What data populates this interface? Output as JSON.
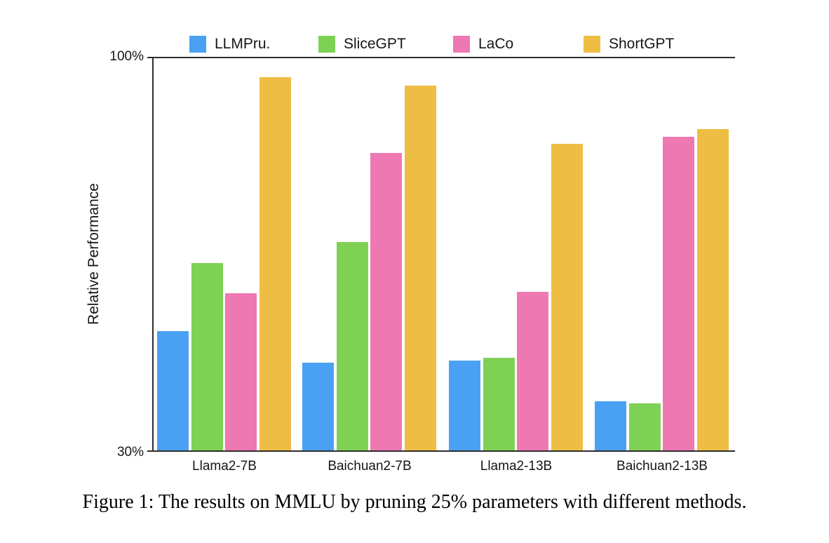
{
  "figure": {
    "caption": "Figure 1: The results on MMLU by pruning 25% parameters with different methods."
  },
  "chart_data": {
    "type": "bar",
    "title": "",
    "xlabel": "",
    "ylabel": "Relative Performance",
    "ylim": [
      30,
      100
    ],
    "yticks": [
      "100%",
      "30%"
    ],
    "grid": false,
    "legend_position": "top",
    "axis_color": "#2e2e2e",
    "categories": [
      "Llama2-7B",
      "Baichuan2-7B",
      "Llama2-13B",
      "Baichuan2-13B"
    ],
    "series": [
      {
        "name": "LLMPru.",
        "color": "#4aa1f3",
        "values": [
          51.3,
          45.6,
          46.0,
          38.8
        ]
      },
      {
        "name": "SliceGPT",
        "color": "#7ed155",
        "values": [
          63.4,
          67.2,
          46.5,
          38.4
        ]
      },
      {
        "name": "LaCo",
        "color": "#ee78b2",
        "values": [
          58.1,
          83.1,
          58.3,
          86.0
        ]
      },
      {
        "name": "ShortGPT",
        "color": "#eebd44",
        "values": [
          96.6,
          95.1,
          84.7,
          87.3
        ]
      }
    ]
  },
  "layout": {
    "legend_lefts": [
      270,
      454,
      646,
      832
    ],
    "group_lefts": [
      5,
      212,
      421,
      629
    ],
    "bar_offsets": [
      0,
      49,
      97,
      146
    ],
    "plot_inner_height": 559
  }
}
